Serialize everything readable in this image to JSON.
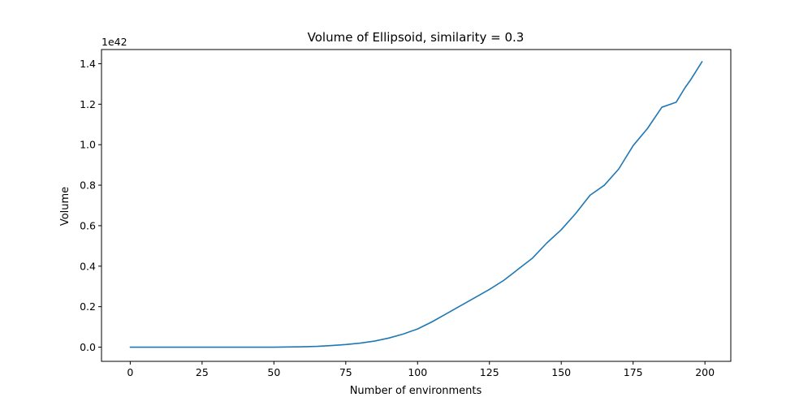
{
  "chart_data": {
    "type": "line",
    "title": "Volume of  Ellipsoid, similarity = 0.3",
    "xlabel": "Number of environments",
    "ylabel": "Volume",
    "y_offset_label": "1e42",
    "xlim": [
      -10,
      209
    ],
    "ylim": [
      -0.07,
      1.47
    ],
    "x_ticks": [
      0,
      25,
      50,
      75,
      100,
      125,
      150,
      175,
      200
    ],
    "x_tick_labels": [
      "0",
      "25",
      "50",
      "75",
      "100",
      "125",
      "150",
      "175",
      "200"
    ],
    "y_ticks": [
      0.0,
      0.2,
      0.4,
      0.6,
      0.8,
      1.0,
      1.2,
      1.4
    ],
    "y_tick_labels": [
      "0.0",
      "0.2",
      "0.4",
      "0.6",
      "0.8",
      "1.0",
      "1.2",
      "1.4"
    ],
    "grid": false,
    "line_color": "#1f77b4",
    "series": [
      {
        "x": [
          0,
          10,
          20,
          30,
          40,
          50,
          55,
          60,
          65,
          70,
          75,
          80,
          85,
          90,
          95,
          100,
          105,
          110,
          115,
          120,
          125,
          130,
          135,
          140,
          145,
          150,
          155,
          160,
          165,
          170,
          175,
          180,
          185,
          188,
          190,
          193,
          195,
          199
        ],
        "values": [
          0.0,
          0.0,
          0.0,
          0.0,
          0.0,
          0.0,
          0.001,
          0.002,
          0.004,
          0.008,
          0.013,
          0.02,
          0.03,
          0.045,
          0.065,
          0.09,
          0.125,
          0.165,
          0.205,
          0.245,
          0.285,
          0.33,
          0.385,
          0.44,
          0.515,
          0.58,
          0.66,
          0.75,
          0.8,
          0.88,
          0.995,
          1.08,
          1.185,
          1.2,
          1.21,
          1.28,
          1.32,
          1.41
        ]
      }
    ]
  }
}
